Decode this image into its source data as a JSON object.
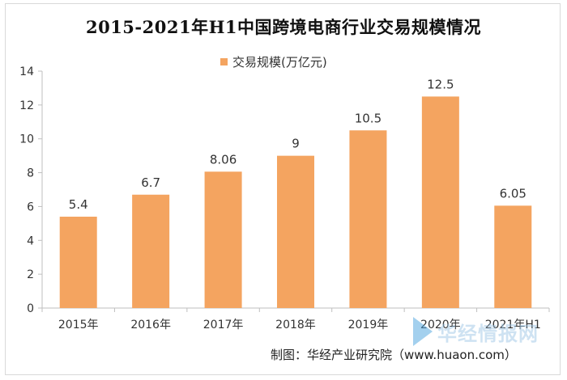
{
  "chart_data": {
    "type": "bar",
    "title": "2015-2021年H1中国跨境电商行业交易规模情况",
    "categories": [
      "2015年",
      "2016年",
      "2017年",
      "2018年",
      "2019年",
      "2020年",
      "2021年H1"
    ],
    "series": [
      {
        "name": "交易规模(万亿元)",
        "values": [
          5.4,
          6.7,
          8.06,
          9,
          10.5,
          12.5,
          6.05
        ],
        "data_labels": [
          "5.4",
          "6.7",
          "8.06",
          "9",
          "10.5",
          "12.5",
          "6.05"
        ]
      }
    ],
    "ylim": [
      0,
      14
    ],
    "yticks": [
      0,
      2,
      4,
      6,
      8,
      10,
      12,
      14
    ],
    "grid": false,
    "legend_position": "top-center",
    "bar_color": "#f4a460"
  },
  "source": "制图：华经产业研究院（www.huaon.com）",
  "watermark": "华经情报网",
  "colors": {
    "bar": "#f4a460",
    "axis": "#bfbfbf",
    "text": "#333333"
  }
}
